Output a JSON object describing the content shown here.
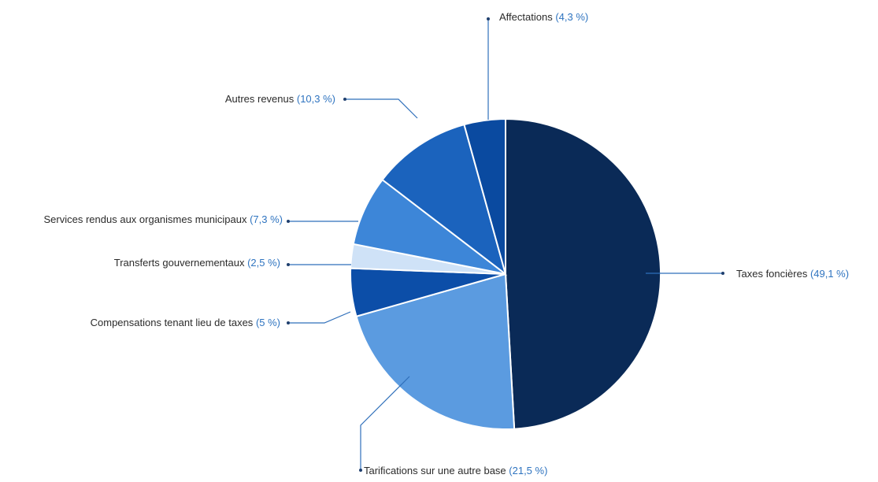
{
  "chart_data": {
    "type": "pie",
    "title": "",
    "slices": [
      {
        "label": "Taxes foncières",
        "value": 49.1,
        "value_label": "(49,1 %)",
        "color": "#0a2a57"
      },
      {
        "label": "Tarifications sur une autre base",
        "value": 21.5,
        "value_label": "(21,5 %)",
        "color": "#5b9be0"
      },
      {
        "label": "Compensations tenant lieu de taxes",
        "value": 5,
        "value_label": "(5 %)",
        "color": "#0c4ea8"
      },
      {
        "label": "Transferts gouvernementaux",
        "value": 2.5,
        "value_label": "(2,5 %)",
        "color": "#cfe2f7"
      },
      {
        "label": "Services rendus aux organismes municipaux",
        "value": 7.3,
        "value_label": "(7,3 %)",
        "color": "#3d86d8"
      },
      {
        "label": "Autres revenus",
        "value": 10.3,
        "value_label": "(10,3 %)",
        "color": "#1b63bd"
      },
      {
        "label": "Affectations",
        "value": 4.3,
        "value_label": "(4,3 %)",
        "color": "#0a4aa0"
      }
    ],
    "start_angle_deg": 0,
    "direction": "clockwise",
    "legend": "none",
    "label_color": "#2b2b2b",
    "percent_color": "#2f74c0",
    "leader_line_color": "#2f6fba"
  }
}
